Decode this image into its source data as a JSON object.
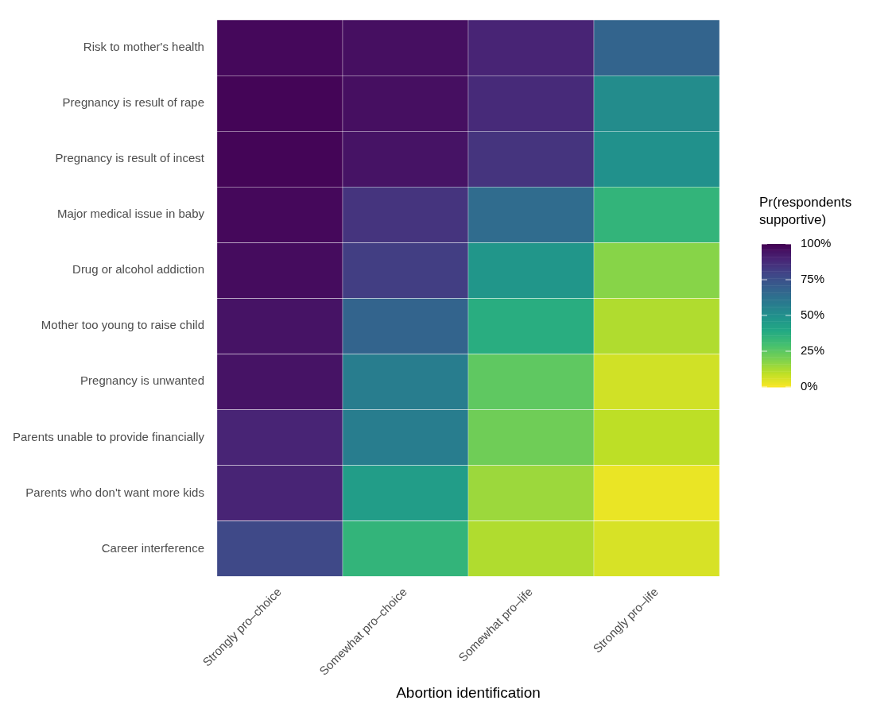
{
  "chart_data": {
    "type": "heatmap",
    "xlabel": "Abortion identification",
    "clabel": "Pr(respondents\nsupportive)",
    "categories": [
      "Strongly pro–choice",
      "Somewhat pro–choice",
      "Somewhat pro–life",
      "Strongly pro–life"
    ],
    "y_categories": [
      "Risk to mother's health",
      "Pregnancy is result of rape",
      "Pregnancy is result of incest",
      "Major medical issue in baby",
      "Drug or alcohol addiction",
      "Mother too young to raise child",
      "Pregnancy is unwanted",
      "Parents unable to provide financially",
      "Parents who don't want more kids",
      "Career interference"
    ],
    "cells": [
      [
        98,
        96,
        90,
        68
      ],
      [
        99,
        96,
        88,
        52
      ],
      [
        99,
        95,
        85,
        50
      ],
      [
        98,
        85,
        65,
        35
      ],
      [
        97,
        82,
        48,
        18
      ],
      [
        95,
        68,
        38,
        12
      ],
      [
        95,
        58,
        25,
        7
      ],
      [
        90,
        58,
        22,
        10
      ],
      [
        90,
        45,
        15,
        3
      ],
      [
        78,
        35,
        12,
        6
      ]
    ],
    "clim": [
      0,
      100
    ],
    "cticks": [
      {
        "value": 0,
        "label": "0%"
      },
      {
        "value": 25,
        "label": "25%"
      },
      {
        "value": 50,
        "label": "50%"
      },
      {
        "value": 75,
        "label": "75%"
      },
      {
        "value": 100,
        "label": "100%"
      }
    ]
  }
}
